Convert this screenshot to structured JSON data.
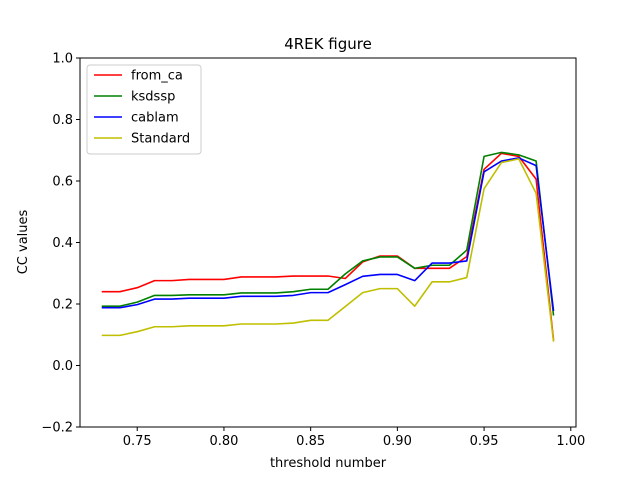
{
  "chart_data": {
    "type": "line",
    "title": "4REK figure",
    "xlabel": "threshold number",
    "ylabel": "CC values",
    "xlim": [
      0.717,
      1.003
    ],
    "ylim": [
      -0.2,
      1.0
    ],
    "xticks": [
      "0.75",
      "0.80",
      "0.85",
      "0.90",
      "0.95",
      "1.00"
    ],
    "yticks": [
      "−0.2",
      "0.0",
      "0.2",
      "0.4",
      "0.6",
      "0.8",
      "1.0"
    ],
    "legend_position": "top-left",
    "grid": false,
    "x": [
      0.73,
      0.74,
      0.75,
      0.76,
      0.77,
      0.78,
      0.79,
      0.8,
      0.81,
      0.82,
      0.83,
      0.84,
      0.85,
      0.86,
      0.87,
      0.88,
      0.89,
      0.9,
      0.91,
      0.92,
      0.93,
      0.94,
      0.95,
      0.96,
      0.97,
      0.98,
      0.99
    ],
    "series": [
      {
        "name": "from_ca",
        "color": "#ff0000",
        "values": [
          0.24,
          0.24,
          0.253,
          0.276,
          0.276,
          0.28,
          0.28,
          0.28,
          0.288,
          0.288,
          0.288,
          0.291,
          0.291,
          0.291,
          0.283,
          0.337,
          0.356,
          0.356,
          0.316,
          0.316,
          0.316,
          0.354,
          0.638,
          0.69,
          0.68,
          0.606,
          0.085
        ]
      },
      {
        "name": "ksdssp",
        "color": "#008000",
        "values": [
          0.193,
          0.193,
          0.206,
          0.228,
          0.228,
          0.23,
          0.23,
          0.23,
          0.236,
          0.236,
          0.236,
          0.24,
          0.248,
          0.248,
          0.298,
          0.34,
          0.353,
          0.353,
          0.316,
          0.326,
          0.326,
          0.375,
          0.68,
          0.693,
          0.685,
          0.665,
          0.165
        ]
      },
      {
        "name": "cablam",
        "color": "#0000ff",
        "values": [
          0.188,
          0.188,
          0.198,
          0.216,
          0.216,
          0.219,
          0.219,
          0.219,
          0.225,
          0.225,
          0.225,
          0.228,
          0.237,
          0.237,
          0.263,
          0.29,
          0.296,
          0.296,
          0.276,
          0.333,
          0.333,
          0.34,
          0.63,
          0.665,
          0.675,
          0.65,
          0.18
        ]
      },
      {
        "name": "Standard",
        "color": "#bfbf00",
        "values": [
          0.098,
          0.098,
          0.11,
          0.126,
          0.126,
          0.129,
          0.129,
          0.129,
          0.135,
          0.135,
          0.135,
          0.138,
          0.147,
          0.147,
          0.192,
          0.237,
          0.25,
          0.25,
          0.193,
          0.272,
          0.272,
          0.286,
          0.575,
          0.66,
          0.672,
          0.56,
          0.08
        ]
      }
    ]
  }
}
